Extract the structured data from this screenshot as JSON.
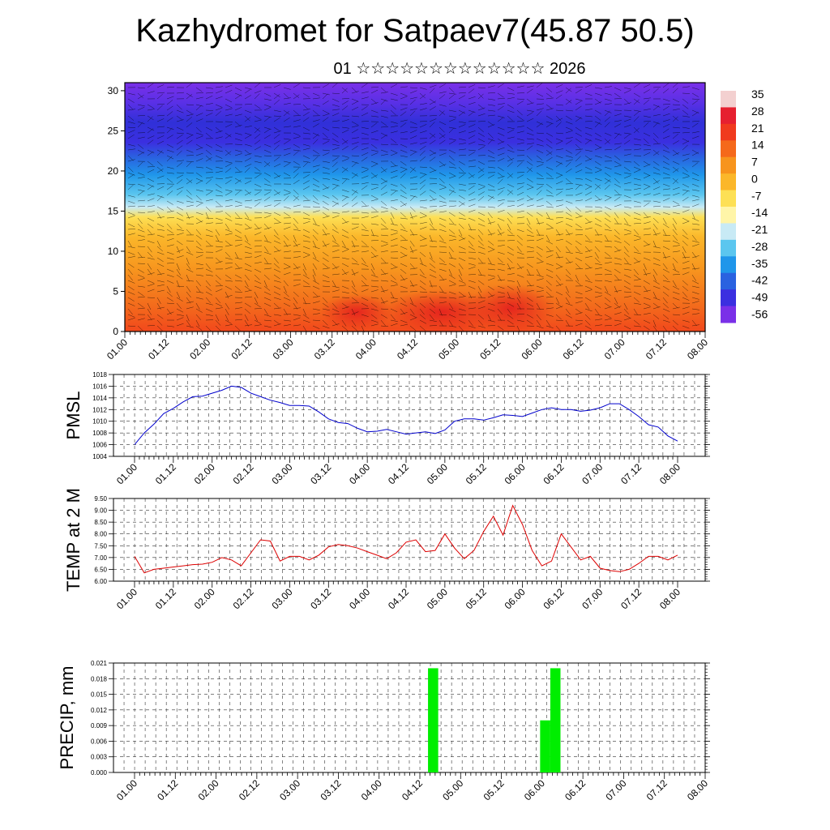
{
  "title": "Kazhydromet for Satpaev7(45.87 50.5)",
  "subtitle": "01 ☆☆☆☆☆☆☆☆☆☆☆☆☆ 2026",
  "chart_data": [
    {
      "type": "heatmap",
      "name": "vertical-profile",
      "x_tick_labels": [
        "01.00",
        "01.12",
        "02.00",
        "02.12",
        "03.00",
        "03.12",
        "04.00",
        "04.12",
        "05.00",
        "05.12",
        "06.00",
        "06.12",
        "07.00",
        "07.12",
        "08.00"
      ],
      "y_tick_labels": [
        "0",
        "5",
        "10",
        "15",
        "20",
        "25",
        "30"
      ],
      "ylim": [
        0,
        31
      ],
      "colorbar_labels": [
        "35",
        "28",
        "21",
        "14",
        "7",
        "0",
        "-7",
        "-14",
        "-21",
        "-28",
        "-35",
        "-42",
        "-49",
        "-56"
      ],
      "colorbar_colors": [
        "#f3d0d0",
        "#e62030",
        "#f03a1e",
        "#f5691b",
        "#f7941d",
        "#fbb72a",
        "#fde055",
        "#fff5a8",
        "#c8eaf5",
        "#5bc6ef",
        "#1f96ea",
        "#2a62e0",
        "#3b2fe0",
        "#7a30e8"
      ],
      "color_scale_description_hidden": true
    },
    {
      "type": "line",
      "name": "pmsl",
      "ylabel": "PMSL",
      "x_tick_labels": [
        "01.00",
        "01.12",
        "02.00",
        "02.12",
        "03.00",
        "03.12",
        "04.00",
        "04.12",
        "05.00",
        "05.12",
        "06.00",
        "06.12",
        "07.00",
        "07.12",
        "08.00"
      ],
      "y_tick_labels": [
        "1004",
        "1006",
        "1008",
        "1010",
        "1012",
        "1014",
        "1016",
        "1018"
      ],
      "ylim": [
        1004,
        1018
      ],
      "line_color": "#0000cc",
      "x": [
        0,
        1,
        2,
        3,
        4,
        5,
        6,
        7,
        8,
        9,
        10,
        11,
        12,
        13,
        14,
        15,
        16,
        17,
        18,
        19,
        20,
        21,
        22,
        23,
        24,
        25,
        26,
        27,
        28,
        29,
        30,
        31,
        32,
        33,
        34,
        35,
        36,
        37,
        38,
        39,
        40,
        41,
        42,
        43,
        44,
        45,
        46,
        47,
        48,
        49,
        50,
        51,
        52,
        53,
        54,
        55,
        56
      ],
      "values": [
        1006,
        1008,
        1009.5,
        1011.3,
        1012.2,
        1013.3,
        1014.2,
        1014.3,
        1014.8,
        1015.3,
        1016,
        1015.8,
        1014.8,
        1014.2,
        1013.6,
        1013.2,
        1012.7,
        1012.7,
        1012.6,
        1011.6,
        1010.4,
        1009.8,
        1009.6,
        1008.8,
        1008.2,
        1008.3,
        1008.6,
        1008.2,
        1007.8,
        1008,
        1008.2,
        1007.9,
        1008.5,
        1010,
        1010.4,
        1010.4,
        1010.2,
        1010.6,
        1011.1,
        1011,
        1010.8,
        1011.4,
        1012,
        1012.3,
        1012,
        1012,
        1011.7,
        1011.9,
        1012.3,
        1013,
        1013,
        1012,
        1010.8,
        1009.4,
        1009,
        1007.5,
        1006.6
      ]
    },
    {
      "type": "line",
      "name": "temp-2m",
      "ylabel": "TEMP at 2 M",
      "x_tick_labels": [
        "01.00",
        "01.12",
        "02.00",
        "02.12",
        "03.00",
        "03.12",
        "04.00",
        "04.12",
        "05.00",
        "05.12",
        "06.00",
        "06.12",
        "07.00",
        "07.12",
        "08.00"
      ],
      "y_tick_labels": [
        "6.00",
        "6.50",
        "7.00",
        "7.50",
        "8.00",
        "8.50",
        "9.00",
        "9.50"
      ],
      "ylim": [
        6.0,
        9.5
      ],
      "line_color": "#dd0000",
      "x": [
        0,
        1,
        2,
        3,
        4,
        5,
        6,
        7,
        8,
        9,
        10,
        11,
        12,
        13,
        14,
        15,
        16,
        17,
        18,
        19,
        20,
        21,
        22,
        23,
        24,
        25,
        26,
        27,
        28,
        29,
        30,
        31,
        32,
        33,
        34,
        35,
        36,
        37,
        38,
        39,
        40,
        41,
        42,
        43,
        44,
        45,
        46,
        47,
        48,
        49,
        50,
        51,
        52,
        53,
        54,
        55,
        56
      ],
      "values": [
        7.05,
        6.35,
        6.5,
        6.55,
        6.6,
        6.65,
        6.7,
        6.72,
        6.8,
        7.0,
        6.9,
        6.65,
        7.2,
        7.75,
        7.7,
        6.85,
        7.05,
        7.05,
        6.9,
        7.1,
        7.45,
        7.55,
        7.5,
        7.4,
        7.25,
        7.1,
        6.95,
        7.2,
        7.65,
        7.75,
        7.25,
        7.3,
        8.0,
        7.4,
        6.95,
        7.3,
        8.1,
        8.75,
        7.95,
        9.2,
        8.4,
        7.3,
        6.65,
        6.85,
        8.0,
        7.45,
        6.9,
        7.05,
        6.55,
        6.45,
        6.4,
        6.5,
        6.75,
        7.05,
        7.05,
        6.9,
        7.1
      ]
    },
    {
      "type": "bar",
      "name": "precip",
      "ylabel": "PRECIP, mm",
      "x_tick_labels": [
        "01.00",
        "01.12",
        "02.00",
        "02.12",
        "03.00",
        "03.12",
        "04.00",
        "04.12",
        "05.00",
        "05.12",
        "06.00",
        "06.12",
        "07.00",
        "07.12",
        "08.00"
      ],
      "y_tick_labels": [
        "0.000",
        "0.003",
        "0.006",
        "0.009",
        "0.012",
        "0.015",
        "0.018",
        "0.021"
      ],
      "ylim": [
        0.0,
        0.021
      ],
      "bar_color": "#00ee00",
      "bars": [
        {
          "x_start": 28.8,
          "x_end": 29.8,
          "value": 0.02
        },
        {
          "x_start": 39.8,
          "x_end": 40.8,
          "value": 0.01
        },
        {
          "x_start": 40.8,
          "x_end": 41.8,
          "value": 0.02
        }
      ]
    }
  ]
}
